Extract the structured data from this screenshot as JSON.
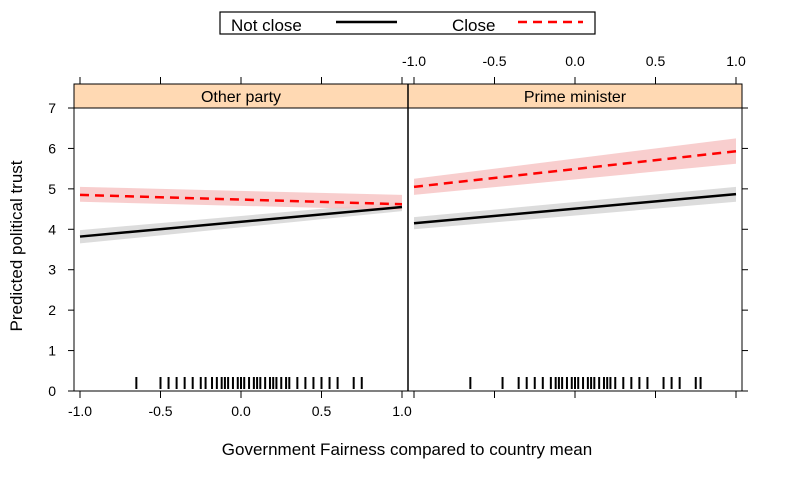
{
  "chart_data": {
    "type": "line",
    "xlabel": "Government Fairness compared to country mean",
    "ylabel": "Predicted political trust",
    "xlim": [
      -1.0,
      1.0
    ],
    "ylim": [
      0,
      7
    ],
    "x_ticks": [
      -1.0,
      -0.5,
      0.0,
      0.5,
      1.0
    ],
    "x_tick_labels": [
      "-1.0",
      "-0.5",
      "0.0",
      "0.5",
      "1.0"
    ],
    "y_ticks": [
      0,
      1,
      2,
      3,
      4,
      5,
      6,
      7
    ],
    "y_tick_labels": [
      "0",
      "1",
      "2",
      "3",
      "4",
      "5",
      "6",
      "7"
    ],
    "grid": false,
    "legend": {
      "placement": "top",
      "entries": [
        {
          "name": "Not close",
          "color": "#000000",
          "dash": "solid"
        },
        {
          "name": "Close",
          "color": "#ff0000",
          "dash": "dashed"
        }
      ]
    },
    "band_colors": {
      "Not close": "#d6d6d6",
      "Close": "#f7c6c6"
    },
    "strip_color": "#ffd9b3",
    "panels": [
      {
        "title": "Other party",
        "series": [
          {
            "name": "Not close",
            "x": [
              -1.0,
              1.0
            ],
            "y": [
              3.82,
              4.55
            ],
            "lower": [
              3.65,
              4.45
            ],
            "upper": [
              3.98,
              4.68
            ]
          },
          {
            "name": "Close",
            "x": [
              -1.0,
              1.0
            ],
            "y": [
              4.85,
              4.62
            ],
            "lower": [
              4.68,
              4.48
            ],
            "upper": [
              5.05,
              4.85
            ]
          }
        ],
        "rug": [
          -0.65,
          -0.5,
          -0.45,
          -0.4,
          -0.35,
          -0.3,
          -0.25,
          -0.22,
          -0.18,
          -0.15,
          -0.12,
          -0.1,
          -0.08,
          -0.05,
          -0.02,
          0.0,
          0.02,
          0.05,
          0.08,
          0.1,
          0.12,
          0.15,
          0.18,
          0.2,
          0.22,
          0.25,
          0.28,
          0.3,
          0.35,
          0.4,
          0.45,
          0.5,
          0.55,
          0.6,
          0.7,
          0.75
        ]
      },
      {
        "title": "Prime minister",
        "series": [
          {
            "name": "Not close",
            "x": [
              -1.0,
              1.0
            ],
            "y": [
              4.15,
              4.87
            ],
            "lower": [
              4.0,
              4.68
            ],
            "upper": [
              4.3,
              5.05
            ]
          },
          {
            "name": "Close",
            "x": [
              -1.0,
              1.0
            ],
            "y": [
              5.05,
              5.93
            ],
            "lower": [
              4.85,
              5.62
            ],
            "upper": [
              5.25,
              6.25
            ]
          }
        ],
        "rug": [
          -0.65,
          -0.45,
          -0.35,
          -0.3,
          -0.25,
          -0.2,
          -0.15,
          -0.12,
          -0.1,
          -0.08,
          -0.05,
          -0.02,
          0.0,
          0.02,
          0.05,
          0.08,
          0.1,
          0.12,
          0.15,
          0.18,
          0.2,
          0.22,
          0.25,
          0.3,
          0.35,
          0.4,
          0.45,
          0.55,
          0.6,
          0.65,
          0.75,
          0.78
        ]
      }
    ]
  }
}
